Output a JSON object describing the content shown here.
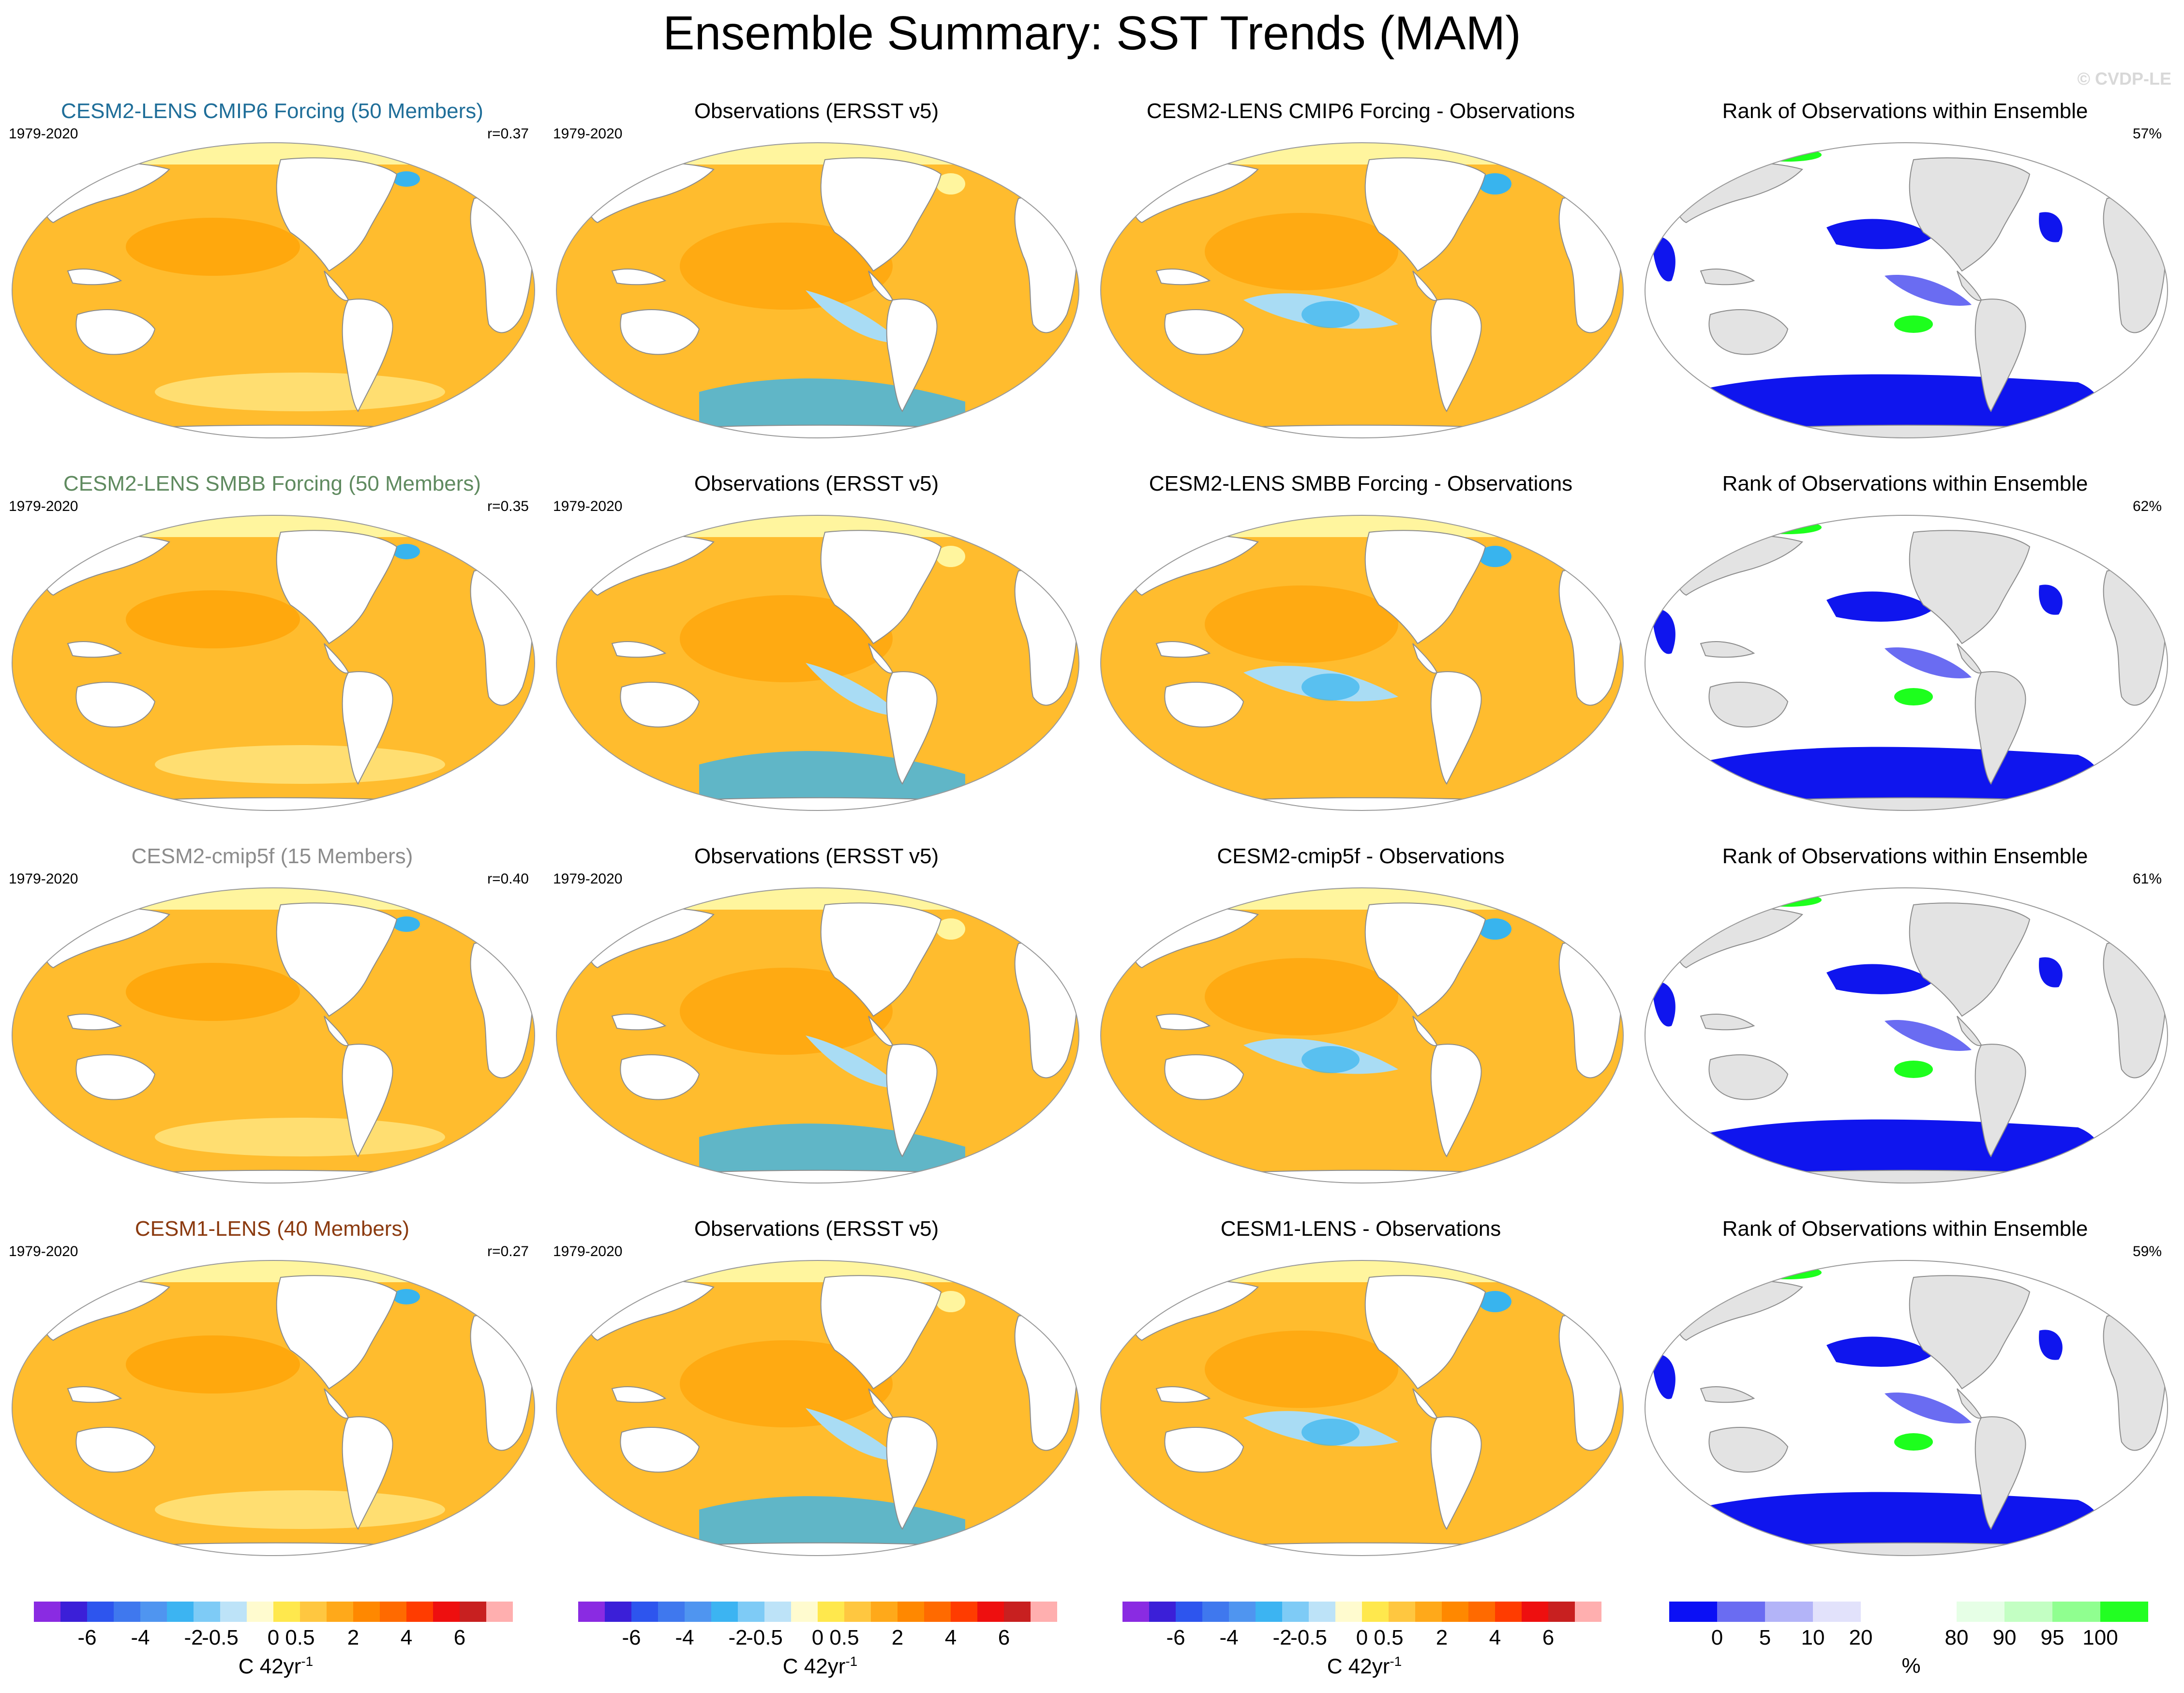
{
  "title": "Ensemble Summary: SST Trends (MAM)",
  "watermark": "© CVDP-LE",
  "colors": {
    "land": "#ffffff",
    "rank_land": "#e3e3e3",
    "trend_ocean": "#ffbc2e",
    "trend_warm": "#ff9f00",
    "trend_cool": "#a9dcf4",
    "trend_cold": "#38b4ee",
    "trend_light": "#fff59e",
    "rank_low": "#0f15ee",
    "rank_mid": "#ffffff",
    "rank_high": "#1dff1d"
  },
  "chart_data": [
    {
      "type": "heatmap",
      "rows": [
        {
          "model_title": "CESM2-LENS CMIP6 Forcing (50 Members)",
          "model_color": "#1f6e99",
          "period": "1979-2020",
          "r": "r=0.37",
          "obs_title": "Observations (ERSST v5)",
          "obs_period": "1979-2020",
          "diff_title": "CESM2-LENS CMIP6 Forcing - Observations",
          "rank_title": "Rank of Observations within Ensemble",
          "rank_pct": "57%"
        },
        {
          "model_title": "CESM2-LENS SMBB Forcing (50 Members)",
          "model_color": "#5f8a5f",
          "period": "1979-2020",
          "r": "r=0.35",
          "obs_title": "Observations (ERSST v5)",
          "obs_period": "1979-2020",
          "diff_title": "CESM2-LENS SMBB Forcing - Observations",
          "rank_title": "Rank of Observations within Ensemble",
          "rank_pct": "62%"
        },
        {
          "model_title": "CESM2-cmip5f (15 Members)",
          "model_color": "#8c8c8c",
          "period": "1979-2020",
          "r": "r=0.40",
          "obs_title": "Observations (ERSST v5)",
          "obs_period": "1979-2020",
          "diff_title": "CESM2-cmip5f - Observations",
          "rank_title": "Rank of Observations within Ensemble",
          "rank_pct": "61%"
        },
        {
          "model_title": "CESM1-LENS (40 Members)",
          "model_color": "#8b3a0f",
          "period": "1979-2020",
          "r": "r=0.27",
          "obs_title": "Observations (ERSST v5)",
          "obs_period": "1979-2020",
          "diff_title": "CESM1-LENS - Observations",
          "rank_title": "Rank of Observations within Ensemble",
          "rank_pct": "59%"
        }
      ]
    }
  ],
  "colorbar_trend": {
    "colors": [
      "#8a2be2",
      "#3b1fd8",
      "#2d55ee",
      "#3f78ee",
      "#4f95f0",
      "#3cb4f2",
      "#7ecbf6",
      "#bde3f8",
      "#fffbcf",
      "#ffe84d",
      "#ffc740",
      "#ffa91a",
      "#ff8800",
      "#ff6a00",
      "#ff3c00",
      "#ee0f0f",
      "#c82020",
      "#ffafaf"
    ],
    "ticks": [
      "-6",
      "-4",
      "-2",
      "-0.5",
      "0",
      "0.5",
      "2",
      "4",
      "6"
    ],
    "label": "C 42yr",
    "label_sup": "-1"
  },
  "colorbar_rank": {
    "colors": [
      "#0b10f5",
      "#6a6cf2",
      "#b3b4f8",
      "#e2e2fb",
      "#ffffff",
      "#ffffff",
      "#e6ffe6",
      "#c3ffc3",
      "#90ff90",
      "#22ff22"
    ],
    "ticks": [
      "0",
      "5",
      "10",
      "20",
      "80",
      "90",
      "95",
      "100"
    ],
    "label": "%"
  }
}
